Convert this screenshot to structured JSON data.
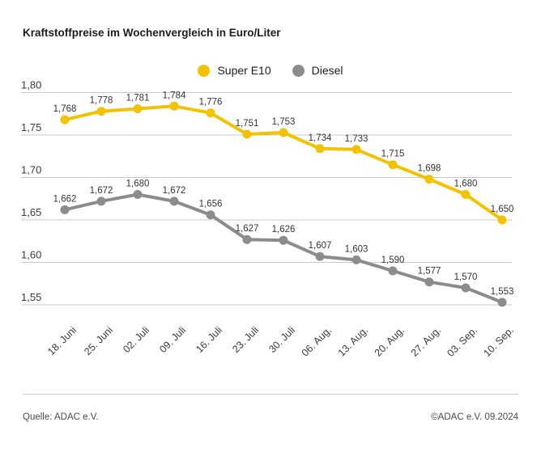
{
  "title": "Kraftstoffpreise im Wochenvergleich in Euro/Liter",
  "legend": {
    "items": [
      {
        "label": "Super E10",
        "color": "#F3C200"
      },
      {
        "label": "Diesel",
        "color": "#8C8C8C"
      }
    ]
  },
  "footer": {
    "source": "Quelle: ADAC e.V.",
    "copyright": "©ADAC e.V. 09.2024"
  },
  "colors": {
    "super_e10": "#F3C200",
    "diesel": "#8C8C8C",
    "gridline": "#C8C8C8",
    "axis_text": "#3A3A3A",
    "value_label_text": "#333333"
  },
  "chart_data": {
    "type": "line",
    "title": "Kraftstoffpreise im Wochenvergleich in Euro/Liter",
    "xlabel": "",
    "ylabel": "Euro/Liter",
    "categories": [
      "18. Juni",
      "25. Juni",
      "02. Juli",
      "09. Juli",
      "16. Juli",
      "23. Juli",
      "30. Juli",
      "06. Aug.",
      "13. Aug.",
      "20. Aug.",
      "27. Aug.",
      "03. Sep.",
      "10. Sep."
    ],
    "series": [
      {
        "name": "Super E10",
        "color": "#F3C200",
        "values": [
          1.768,
          1.778,
          1.781,
          1.784,
          1.776,
          1.751,
          1.753,
          1.734,
          1.733,
          1.715,
          1.698,
          1.68,
          1.65
        ]
      },
      {
        "name": "Diesel",
        "color": "#8C8C8C",
        "values": [
          1.662,
          1.672,
          1.68,
          1.672,
          1.656,
          1.627,
          1.626,
          1.607,
          1.603,
          1.59,
          1.577,
          1.57,
          1.553
        ]
      }
    ],
    "ylim": [
      1.55,
      1.8
    ],
    "ytick_step": 0.05,
    "yticks": [
      "1,80",
      "1,75",
      "1,70",
      "1,65",
      "1,60",
      "1,55"
    ],
    "grid": true,
    "legend_position": "top-center",
    "value_labels": true,
    "decimal_separator": ","
  }
}
